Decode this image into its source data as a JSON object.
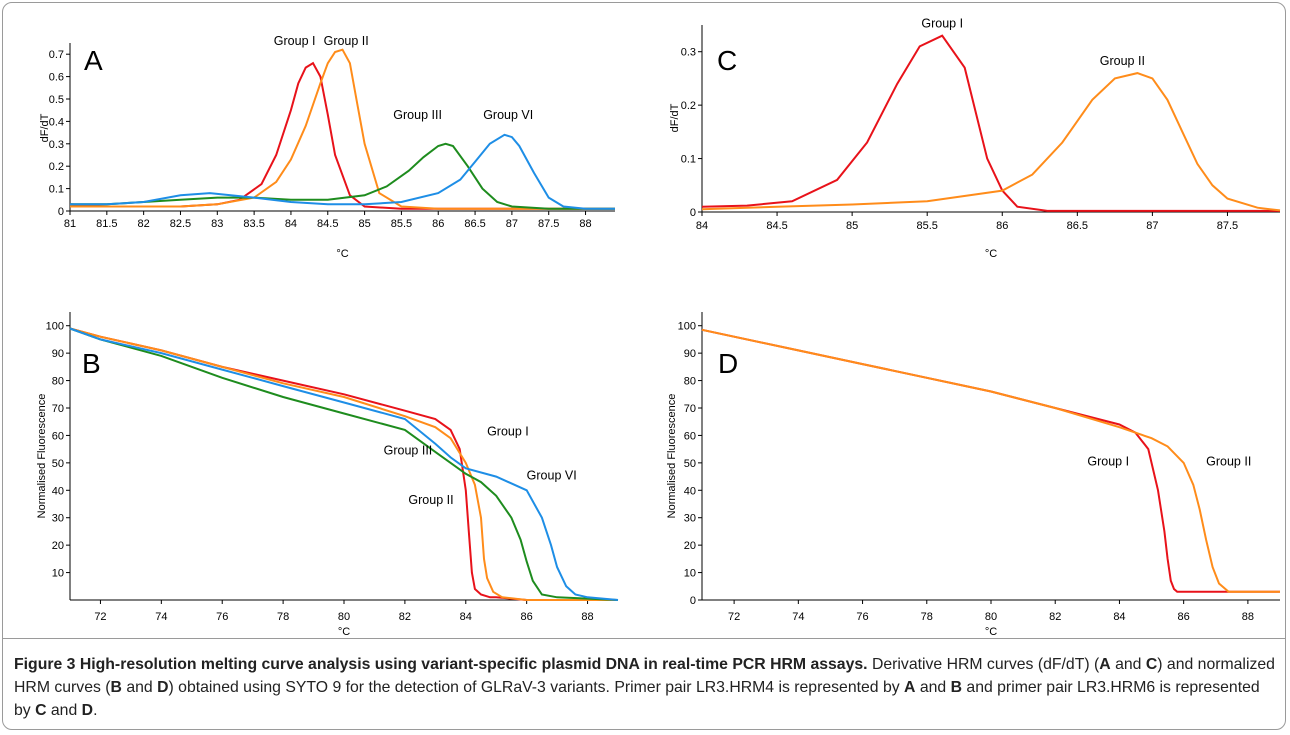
{
  "chart_data": [
    {
      "type": "line",
      "panel": "A",
      "xlabel": "°C",
      "ylabel": "dF/dT",
      "xlim": [
        81,
        88.4
      ],
      "ylim": [
        0,
        0.75
      ],
      "xticks": [
        81,
        81.5,
        82,
        82.5,
        83,
        83.5,
        84,
        84.5,
        85,
        85.5,
        86,
        86.5,
        87,
        87.5,
        88
      ],
      "yticks": [
        0,
        0.1,
        0.2,
        0.3,
        0.4,
        0.5,
        0.6,
        0.7
      ],
      "series": [
        {
          "name": "Group I",
          "color": "#e8121a",
          "x": [
            81,
            81.5,
            82,
            82.5,
            83,
            83.3,
            83.6,
            83.8,
            84,
            84.1,
            84.2,
            84.3,
            84.4,
            84.5,
            84.6,
            84.8,
            85,
            85.5,
            86,
            87,
            88.4
          ],
          "y": [
            0.03,
            0.02,
            0.02,
            0.02,
            0.03,
            0.05,
            0.12,
            0.25,
            0.45,
            0.57,
            0.64,
            0.66,
            0.6,
            0.43,
            0.25,
            0.07,
            0.02,
            0.01,
            0.01,
            0.01,
            0.01
          ]
        },
        {
          "name": "Group II",
          "color": "#ff8c1a",
          "x": [
            81,
            81.5,
            82,
            82.5,
            83,
            83.5,
            83.8,
            84,
            84.2,
            84.4,
            84.5,
            84.6,
            84.7,
            84.8,
            84.9,
            85,
            85.2,
            85.5,
            86,
            87,
            88.4
          ],
          "y": [
            0.02,
            0.02,
            0.02,
            0.02,
            0.03,
            0.06,
            0.13,
            0.23,
            0.38,
            0.57,
            0.66,
            0.71,
            0.72,
            0.66,
            0.48,
            0.3,
            0.08,
            0.02,
            0.01,
            0.01,
            0.01
          ]
        },
        {
          "name": "Group III",
          "color": "#1e8c1e",
          "x": [
            81,
            81.5,
            82,
            82.5,
            83,
            83.5,
            84,
            84.5,
            85,
            85.3,
            85.6,
            85.8,
            86,
            86.1,
            86.2,
            86.4,
            86.6,
            86.8,
            87,
            87.5,
            88.4
          ],
          "y": [
            0.03,
            0.03,
            0.04,
            0.05,
            0.06,
            0.06,
            0.05,
            0.05,
            0.07,
            0.11,
            0.18,
            0.24,
            0.29,
            0.3,
            0.29,
            0.2,
            0.1,
            0.04,
            0.02,
            0.01,
            0.01
          ]
        },
        {
          "name": "Group VI",
          "color": "#1e8ee6",
          "x": [
            81,
            81.5,
            82,
            82.5,
            82.9,
            83.5,
            84,
            84.5,
            85,
            85.5,
            86,
            86.3,
            86.5,
            86.7,
            86.9,
            87,
            87.1,
            87.3,
            87.5,
            87.7,
            88,
            88.4
          ],
          "y": [
            0.03,
            0.03,
            0.04,
            0.07,
            0.08,
            0.06,
            0.04,
            0.03,
            0.03,
            0.04,
            0.08,
            0.14,
            0.22,
            0.3,
            0.34,
            0.33,
            0.29,
            0.17,
            0.06,
            0.02,
            0.01,
            0.01
          ]
        }
      ],
      "annotations": [
        "Group I",
        "Group II",
        "Group III",
        "Group VI"
      ]
    },
    {
      "type": "line",
      "panel": "B",
      "xlabel": "°C",
      "ylabel": "Normalised Fluorescence",
      "xlim": [
        71,
        89
      ],
      "ylim": [
        0,
        105
      ],
      "xticks": [
        72,
        74,
        76,
        78,
        80,
        82,
        84,
        86,
        88
      ],
      "yticks": [
        10,
        20,
        30,
        40,
        50,
        60,
        70,
        80,
        90,
        100
      ],
      "series": [
        {
          "name": "Group I",
          "color": "#e8121a",
          "x": [
            71,
            72,
            74,
            76,
            78,
            80,
            82,
            83,
            83.5,
            83.8,
            84,
            84.1,
            84.2,
            84.3,
            84.5,
            84.8,
            85,
            86,
            89
          ],
          "y": [
            99,
            96,
            91,
            85,
            80,
            75,
            69,
            66,
            62,
            55,
            40,
            25,
            10,
            4,
            2,
            1,
            1,
            0,
            0
          ]
        },
        {
          "name": "Group II",
          "color": "#ff8c1a",
          "x": [
            71,
            72,
            74,
            76,
            78,
            80,
            82,
            83,
            83.5,
            84,
            84.3,
            84.5,
            84.6,
            84.7,
            84.9,
            85.2,
            86,
            89
          ],
          "y": [
            99,
            96,
            91,
            85,
            79,
            74,
            67,
            63,
            59,
            50,
            42,
            30,
            15,
            8,
            3,
            1,
            0,
            0
          ]
        },
        {
          "name": "Group III",
          "color": "#1e8c1e",
          "x": [
            71,
            72,
            74,
            76,
            78,
            80,
            82,
            83,
            84,
            84.5,
            85,
            85.5,
            85.8,
            86,
            86.2,
            86.5,
            87,
            89
          ],
          "y": [
            99,
            95,
            89,
            81,
            74,
            68,
            62,
            54,
            46,
            43,
            38,
            30,
            22,
            14,
            7,
            2,
            1,
            0
          ]
        },
        {
          "name": "Group VI",
          "color": "#1e8ee6",
          "x": [
            71,
            72,
            74,
            76,
            78,
            80,
            82,
            83,
            83.5,
            84,
            85,
            86,
            86.5,
            86.8,
            87,
            87.3,
            87.6,
            88,
            89
          ],
          "y": [
            99,
            95,
            90,
            84,
            78,
            72,
            66,
            57,
            52,
            48,
            45,
            40,
            30,
            20,
            12,
            5,
            2,
            1,
            0
          ]
        }
      ],
      "annotations": [
        "Group III",
        "Group I",
        "Group VI",
        "Group II"
      ]
    },
    {
      "type": "line",
      "panel": "C",
      "xlabel": "°C",
      "ylabel": "dF/dT",
      "xlim": [
        84,
        87.85
      ],
      "ylim": [
        0,
        0.35
      ],
      "xticks": [
        84,
        84.5,
        85,
        85.5,
        86,
        86.5,
        87,
        87.5
      ],
      "yticks": [
        0,
        0.1,
        0.2,
        0.3
      ],
      "series": [
        {
          "name": "Group I",
          "color": "#e8121a",
          "x": [
            84,
            84.3,
            84.6,
            84.9,
            85.1,
            85.3,
            85.45,
            85.6,
            85.75,
            85.9,
            86,
            86.1,
            86.3,
            87,
            87.85
          ],
          "y": [
            0.01,
            0.012,
            0.02,
            0.06,
            0.13,
            0.24,
            0.31,
            0.33,
            0.27,
            0.1,
            0.04,
            0.01,
            0.002,
            0.002,
            0.002
          ]
        },
        {
          "name": "Group II",
          "color": "#ff8c1a",
          "x": [
            84,
            84.5,
            85,
            85.5,
            86,
            86.2,
            86.4,
            86.6,
            86.75,
            86.9,
            87,
            87.1,
            87.2,
            87.3,
            87.4,
            87.5,
            87.7,
            87.85
          ],
          "y": [
            0.005,
            0.01,
            0.014,
            0.02,
            0.04,
            0.07,
            0.13,
            0.21,
            0.25,
            0.26,
            0.25,
            0.21,
            0.15,
            0.09,
            0.05,
            0.025,
            0.008,
            0.003
          ]
        }
      ],
      "annotations": [
        "Group I",
        "Group II"
      ]
    },
    {
      "type": "line",
      "panel": "D",
      "xlabel": "°C",
      "ylabel": "Normalised Fluorescence",
      "xlim": [
        71,
        89
      ],
      "ylim": [
        0,
        105
      ],
      "xticks": [
        72,
        74,
        76,
        78,
        80,
        82,
        84,
        86,
        88
      ],
      "yticks": [
        0,
        10,
        20,
        30,
        40,
        50,
        60,
        70,
        80,
        90,
        100
      ],
      "series": [
        {
          "name": "Group I",
          "color": "#e8121a",
          "x": [
            71,
            72,
            74,
            76,
            78,
            80,
            82,
            84,
            84.5,
            84.9,
            85.2,
            85.4,
            85.5,
            85.6,
            85.7,
            85.8,
            86,
            86.2,
            89
          ],
          "y": [
            98.5,
            96,
            91,
            86,
            81,
            76,
            70,
            64,
            61,
            55,
            40,
            25,
            15,
            7,
            4,
            3,
            3,
            3,
            3
          ]
        },
        {
          "name": "Group II",
          "color": "#ff8c1a",
          "x": [
            71,
            72,
            74,
            76,
            78,
            80,
            82,
            84,
            85,
            85.5,
            86,
            86.3,
            86.5,
            86.7,
            86.9,
            87.1,
            87.4,
            87.8,
            89
          ],
          "y": [
            98.5,
            96,
            91,
            86,
            81,
            76,
            70,
            63,
            59,
            56,
            50,
            42,
            33,
            22,
            12,
            6,
            3,
            3,
            3
          ]
        }
      ],
      "annotations": [
        "Group I",
        "Group II"
      ]
    }
  ],
  "caption": {
    "title": "Figure 3 High-resolution melting curve analysis using variant-specific plasmid DNA in real-time PCR HRM assays.",
    "t1": " Derivative HRM curves (dF/dT) (",
    "b1": "A",
    "t2": " and ",
    "b2": "C",
    "t3": ") and normalized HRM curves (",
    "b3": "B",
    "t4": " and ",
    "b4": "D",
    "t5": ") obtained using SYTO 9 for the detection of GLRaV-3 variants. Primer pair LR3.HRM4 is represented by ",
    "b5": "A",
    "t6": " and ",
    "b6": "B",
    "t7": " and primer pair LR3.HRM6 is represented by ",
    "b7": "C",
    "t8": " and ",
    "b8": "D",
    "t9": "."
  }
}
